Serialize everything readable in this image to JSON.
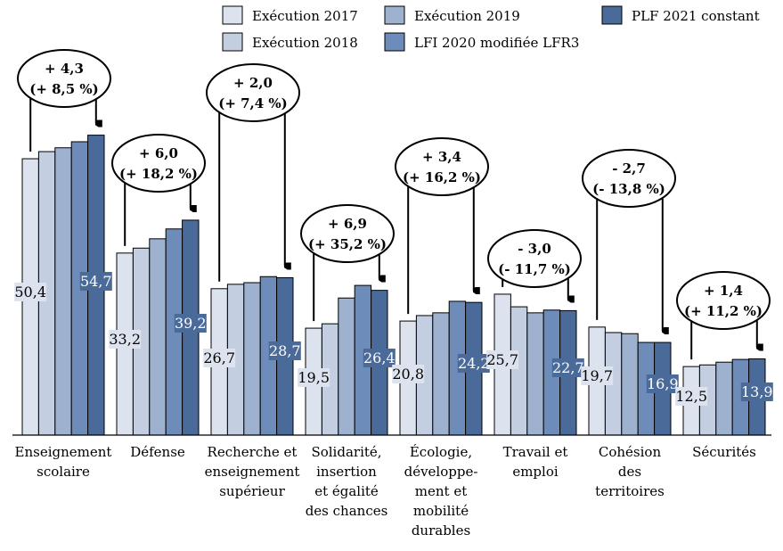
{
  "chart_data": {
    "type": "bar",
    "categories": [
      [
        "Enseignement",
        "scolaire"
      ],
      [
        "Défense"
      ],
      [
        "Recherche et",
        "enseignement",
        "supérieur"
      ],
      [
        "Solidarité,",
        "insertion",
        "et égalité",
        "des chances"
      ],
      [
        "Écologie,",
        "développe-",
        "ment et",
        "mobilité",
        "durables"
      ],
      [
        "Travail et",
        "emploi"
      ],
      [
        "Cohésion",
        "des",
        "territoires"
      ],
      [
        "Sécurités"
      ]
    ],
    "series": [
      {
        "name": "Exécution 2017",
        "color": "#dde3ee",
        "values": [
          50.4,
          33.2,
          26.7,
          19.5,
          20.8,
          25.7,
          19.7,
          12.5
        ]
      },
      {
        "name": "Exécution 2018",
        "color": "#c3cee0",
        "values": [
          51.7,
          34.1,
          27.5,
          20.3,
          21.8,
          23.4,
          18.7,
          12.8
        ]
      },
      {
        "name": "Exécution 2019",
        "color": "#9eb1cf",
        "values": [
          52.4,
          35.8,
          27.8,
          25.0,
          22.3,
          22.3,
          18.5,
          13.3
        ]
      },
      {
        "name": "LFI 2020 modifiée LFR3",
        "color": "#6d8cba",
        "values": [
          53.5,
          37.6,
          28.9,
          27.3,
          24.4,
          22.8,
          16.9,
          13.8
        ]
      },
      {
        "name": "PLF 2021 constant",
        "color": "#4a6a9a",
        "values": [
          54.7,
          39.2,
          28.7,
          26.4,
          24.2,
          22.7,
          16.9,
          13.9
        ]
      }
    ],
    "data_labels_first": [
      "50,4",
      "33,2",
      "26,7",
      "19,5",
      "20,8",
      "25,7",
      "19,7",
      "12,5"
    ],
    "data_labels_last": [
      "54,7",
      "39,2",
      "28,7",
      "26,4",
      "24,2",
      "22,7",
      "16,9",
      "13,9"
    ],
    "annotations": [
      [
        "+ 4,3",
        "(+ 8,5 %)"
      ],
      [
        "+ 6,0",
        "(+ 18,2 %)"
      ],
      [
        "+ 2,0",
        "(+ 7,4 %)"
      ],
      [
        "+ 6,9",
        "(+ 35,2 %)"
      ],
      [
        "+ 3,4",
        "(+ 16,2 %)"
      ],
      [
        "- 3,0",
        "(- 11,7 %)"
      ],
      [
        "- 2,7",
        "(- 13,8 %)"
      ],
      [
        "+ 1,4",
        "(+ 11,2 %)"
      ]
    ],
    "ylim": [
      0,
      60
    ],
    "legend_placement": "top-right",
    "grid": false
  }
}
